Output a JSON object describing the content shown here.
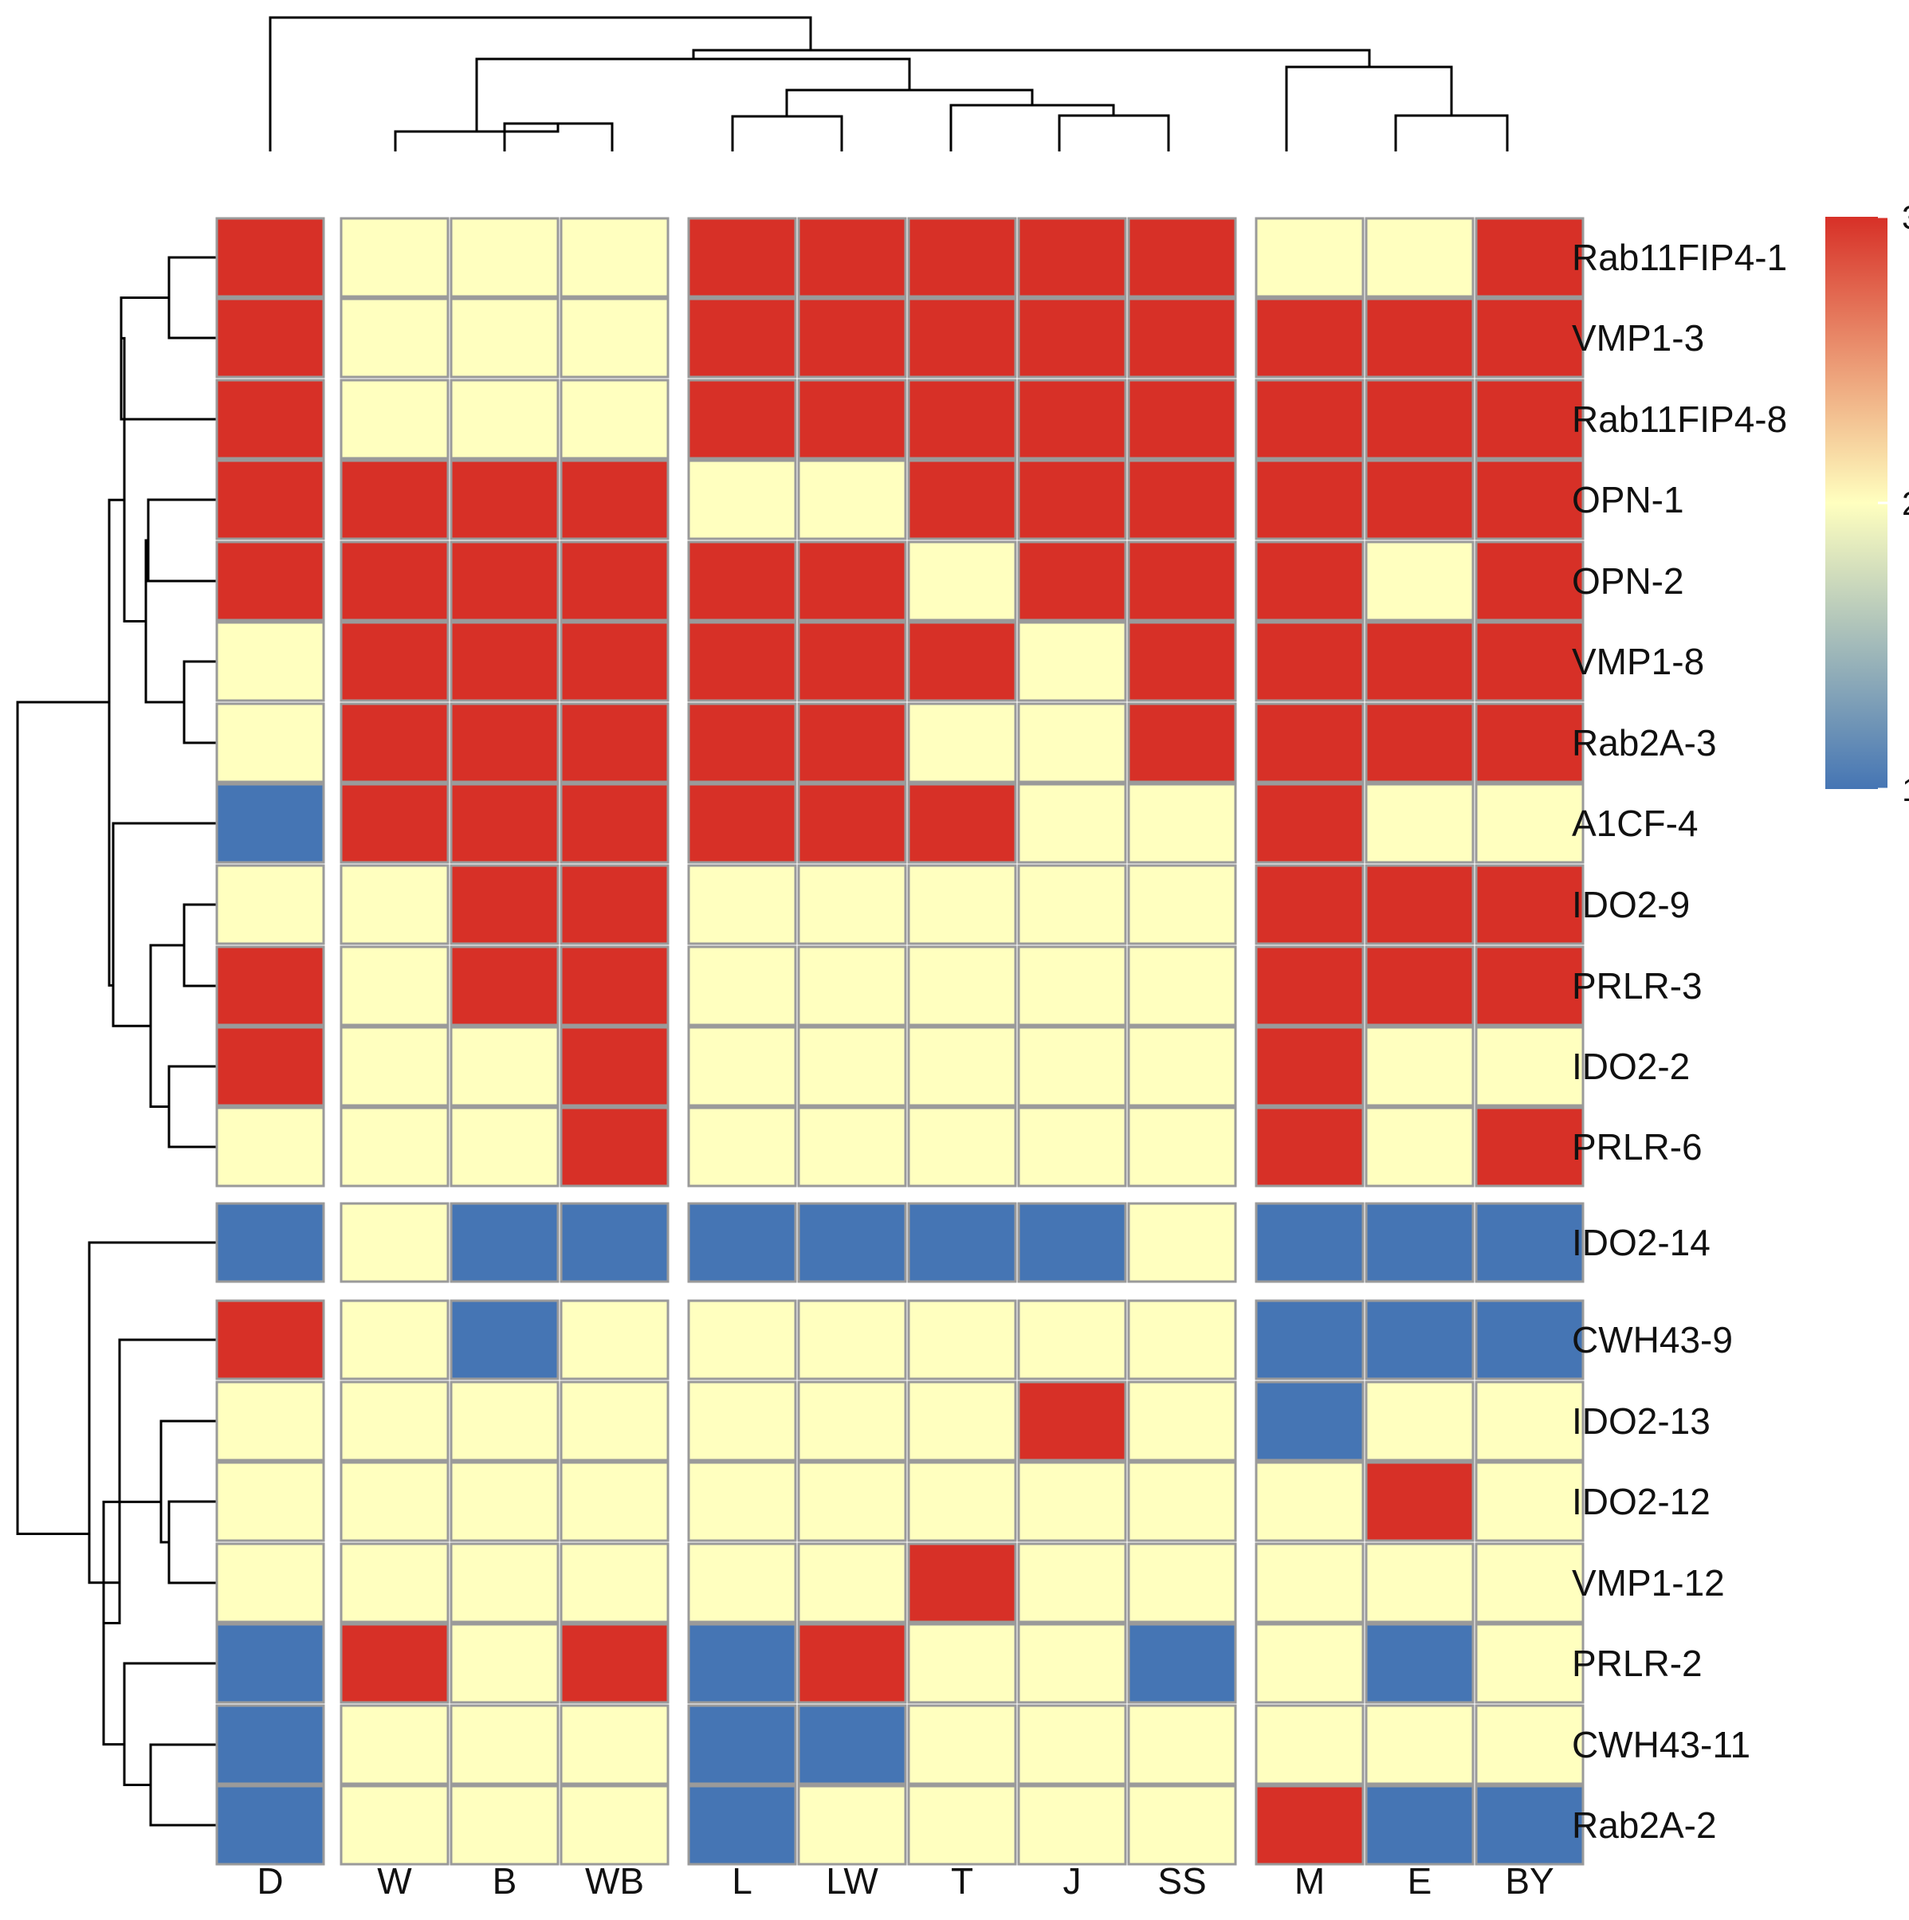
{
  "chart_data": {
    "type": "heatmap",
    "title": "",
    "xlabel": "",
    "ylabel": "",
    "columns": [
      "D",
      "W",
      "B",
      "WB",
      "L",
      "LW",
      "T",
      "J",
      "SS",
      "M",
      "E",
      "BY"
    ],
    "rows": [
      "Rab11FIP4-1",
      "VMP1-3",
      "Rab11FIP4-8",
      "OPN-1",
      "OPN-2",
      "VMP1-8",
      "Rab2A-3",
      "A1CF-4",
      "IDO2-9",
      "PRLR-3",
      "IDO2-2",
      "PRLR-6",
      "IDO2-14",
      "CWH43-9",
      "IDO2-13",
      "IDO2-12",
      "VMP1-12",
      "PRLR-2",
      "CWH43-11",
      "Rab2A-2"
    ],
    "values": [
      [
        3,
        2,
        2,
        2,
        3,
        3,
        3,
        3,
        3,
        2,
        2,
        3
      ],
      [
        3,
        2,
        2,
        2,
        3,
        3,
        3,
        3,
        3,
        3,
        3,
        3
      ],
      [
        3,
        2,
        2,
        2,
        3,
        3,
        3,
        3,
        3,
        3,
        3,
        3
      ],
      [
        3,
        3,
        3,
        3,
        2,
        2,
        3,
        3,
        3,
        3,
        3,
        3
      ],
      [
        3,
        3,
        3,
        3,
        3,
        3,
        2,
        3,
        3,
        3,
        2,
        3
      ],
      [
        2,
        3,
        3,
        3,
        3,
        3,
        3,
        2,
        3,
        3,
        3,
        3
      ],
      [
        2,
        3,
        3,
        3,
        3,
        3,
        2,
        2,
        3,
        3,
        3,
        3
      ],
      [
        1,
        3,
        3,
        3,
        3,
        3,
        3,
        2,
        2,
        3,
        2,
        2
      ],
      [
        2,
        2,
        3,
        3,
        2,
        2,
        2,
        2,
        2,
        3,
        3,
        3
      ],
      [
        3,
        2,
        3,
        3,
        2,
        2,
        2,
        2,
        2,
        3,
        3,
        3
      ],
      [
        3,
        2,
        2,
        3,
        2,
        2,
        2,
        2,
        2,
        3,
        2,
        2
      ],
      [
        2,
        2,
        2,
        3,
        2,
        2,
        2,
        2,
        2,
        3,
        2,
        3
      ],
      [
        1,
        2,
        1,
        1,
        1,
        1,
        1,
        1,
        2,
        1,
        1,
        1
      ],
      [
        3,
        2,
        1,
        2,
        2,
        2,
        2,
        2,
        2,
        1,
        1,
        1
      ],
      [
        2,
        2,
        2,
        2,
        2,
        2,
        2,
        3,
        2,
        1,
        2,
        2
      ],
      [
        2,
        2,
        2,
        2,
        2,
        2,
        2,
        2,
        2,
        2,
        3,
        2
      ],
      [
        2,
        2,
        2,
        2,
        2,
        2,
        3,
        2,
        2,
        2,
        2,
        2
      ],
      [
        1,
        3,
        2,
        3,
        1,
        3,
        2,
        2,
        1,
        2,
        1,
        2
      ],
      [
        1,
        2,
        2,
        2,
        1,
        1,
        2,
        2,
        2,
        2,
        2,
        2
      ],
      [
        1,
        2,
        2,
        2,
        1,
        2,
        2,
        2,
        2,
        3,
        1,
        1
      ]
    ],
    "column_groups": [
      [
        "D"
      ],
      [
        "W",
        "B",
        "WB"
      ],
      [
        "L",
        "LW",
        "T",
        "J",
        "SS"
      ],
      [
        "M",
        "E",
        "BY"
      ]
    ],
    "row_groups": [
      [
        "Rab11FIP4-1",
        "VMP1-3",
        "Rab11FIP4-8",
        "OPN-1",
        "OPN-2",
        "VMP1-8",
        "Rab2A-3",
        "A1CF-4",
        "IDO2-9",
        "PRLR-3",
        "IDO2-2",
        "PRLR-6"
      ],
      [
        "IDO2-14"
      ],
      [
        "CWH43-9",
        "IDO2-13",
        "IDO2-12",
        "VMP1-12",
        "PRLR-2",
        "CWH43-11",
        "Rab2A-2"
      ]
    ],
    "color_scale": {
      "min": 1,
      "max": 3,
      "ticks": [
        1,
        2,
        3
      ],
      "tick_labels": [
        "1",
        "2",
        "3"
      ],
      "colors": [
        "#4575b4",
        "#ffffbf",
        "#d73027"
      ]
    },
    "column_dendrogram": true,
    "row_dendrogram": true,
    "legend_position": "right",
    "grid": true
  }
}
